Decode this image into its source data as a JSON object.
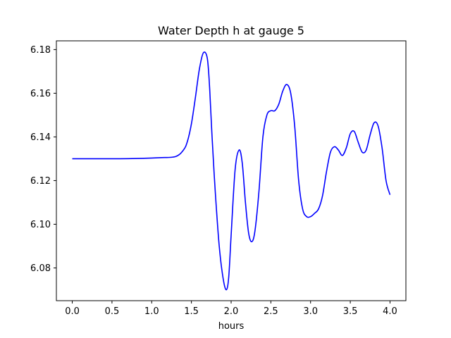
{
  "chart_data": {
    "type": "line",
    "title": "Water Depth h at gauge 5",
    "xlabel": "hours",
    "ylabel": "",
    "xlim": [
      -0.2,
      4.2
    ],
    "ylim": [
      6.065,
      6.184
    ],
    "xticks": [
      0.0,
      0.5,
      1.0,
      1.5,
      2.0,
      2.5,
      3.0,
      3.5,
      4.0
    ],
    "xtick_labels": [
      "0.0",
      "0.5",
      "1.0",
      "1.5",
      "2.0",
      "2.5",
      "3.0",
      "3.5",
      "4.0"
    ],
    "yticks": [
      6.08,
      6.1,
      6.12,
      6.14,
      6.16,
      6.18
    ],
    "ytick_labels": [
      "6.08",
      "6.10",
      "6.12",
      "6.14",
      "6.16",
      "6.18"
    ],
    "grid": false,
    "series": [
      {
        "color": "#0000ff",
        "x": [
          0.0,
          0.3,
          0.6,
          0.9,
          1.1,
          1.3,
          1.4,
          1.45,
          1.5,
          1.55,
          1.6,
          1.65,
          1.7,
          1.73,
          1.76,
          1.8,
          1.85,
          1.9,
          1.94,
          1.97,
          2.0,
          2.05,
          2.1,
          2.14,
          2.18,
          2.22,
          2.26,
          2.3,
          2.35,
          2.4,
          2.45,
          2.5,
          2.55,
          2.6,
          2.65,
          2.7,
          2.75,
          2.8,
          2.85,
          2.9,
          2.95,
          3.0,
          3.05,
          3.1,
          3.15,
          3.2,
          3.25,
          3.3,
          3.35,
          3.4,
          3.45,
          3.5,
          3.55,
          3.6,
          3.65,
          3.7,
          3.75,
          3.8,
          3.85,
          3.9,
          3.95,
          4.0
        ],
        "y": [
          6.13,
          6.13,
          6.13,
          6.1302,
          6.1305,
          6.131,
          6.134,
          6.138,
          6.146,
          6.158,
          6.171,
          6.1785,
          6.176,
          6.162,
          6.14,
          6.115,
          6.09,
          6.075,
          6.07,
          6.076,
          6.095,
          6.125,
          6.134,
          6.128,
          6.11,
          6.096,
          6.092,
          6.097,
          6.115,
          6.14,
          6.15,
          6.152,
          6.152,
          6.155,
          6.161,
          6.164,
          6.16,
          6.145,
          6.12,
          6.107,
          6.1035,
          6.1035,
          6.105,
          6.107,
          6.113,
          6.124,
          6.133,
          6.1355,
          6.134,
          6.1315,
          6.135,
          6.1415,
          6.1425,
          6.1375,
          6.133,
          6.134,
          6.141,
          6.1465,
          6.145,
          6.135,
          6.12,
          6.1135
        ]
      }
    ]
  }
}
